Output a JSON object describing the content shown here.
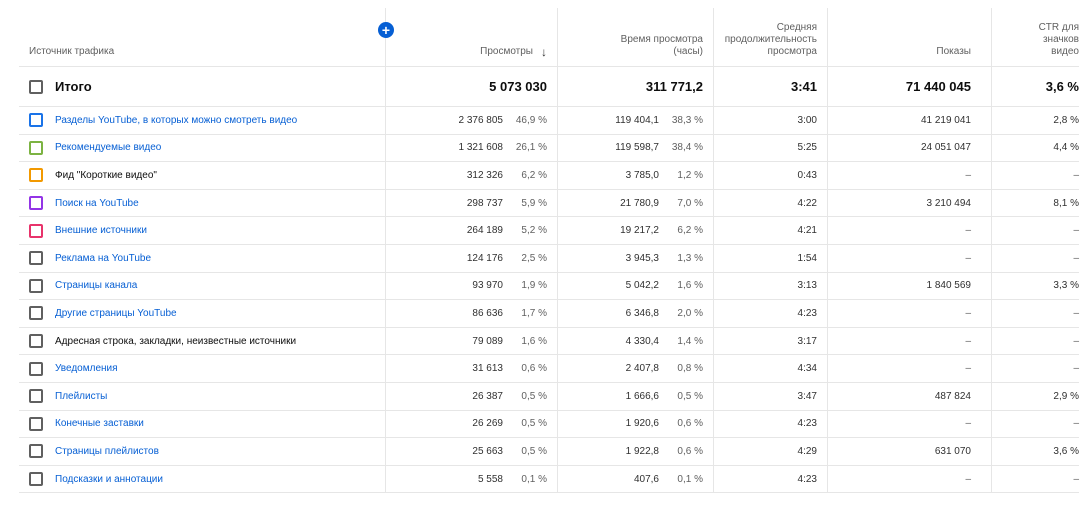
{
  "header": {
    "source": "Источник трафика",
    "views": "Просмотры",
    "sort_icon": "arrow-down-icon",
    "time_line1": "Время просмотра",
    "time_line2": "(часы)",
    "avg_line1": "Средняя",
    "avg_line2": "продолжительность",
    "avg_line3": "просмотра",
    "impressions": "Показы",
    "ctr_line1": "CTR для",
    "ctr_line2": "значков",
    "ctr_line3": "видео",
    "add_icon": "+"
  },
  "total": {
    "label": "Итого",
    "views": "5 073 030",
    "time": "311 771,2",
    "avg": "3:41",
    "impressions": "71 440 045",
    "ctr": "3,6 %"
  },
  "rows": [
    {
      "label": "Разделы YouTube, в которых можно смотреть видео",
      "link": true,
      "color": "#1a73e8",
      "views": "2 376 805",
      "views_pct": "46,9 %",
      "time": "119 404,1",
      "time_pct": "38,3 %",
      "avg": "3:00",
      "impressions": "41 219 041",
      "ctr": "2,8 %"
    },
    {
      "label": "Рекомендуемые видео",
      "link": true,
      "color": "#7cb342",
      "views": "1 321 608",
      "views_pct": "26,1 %",
      "time": "119 598,7",
      "time_pct": "38,4 %",
      "avg": "5:25",
      "impressions": "24 051 047",
      "ctr": "4,4 %"
    },
    {
      "label": "Фид \"Короткие видео\"",
      "link": false,
      "color": "#f29900",
      "views": "312 326",
      "views_pct": "6,2 %",
      "time": "3 785,0",
      "time_pct": "1,2 %",
      "avg": "0:43",
      "impressions": "–",
      "ctr": "–"
    },
    {
      "label": "Поиск на YouTube",
      "link": true,
      "color": "#9334e6",
      "views": "298 737",
      "views_pct": "5,9 %",
      "time": "21 780,9",
      "time_pct": "7,0 %",
      "avg": "4:22",
      "impressions": "3 210 494",
      "ctr": "8,1 %"
    },
    {
      "label": "Внешние источники",
      "link": true,
      "color": "#e8336b",
      "views": "264 189",
      "views_pct": "5,2 %",
      "time": "19 217,2",
      "time_pct": "6,2 %",
      "avg": "4:21",
      "impressions": "–",
      "ctr": "–"
    },
    {
      "label": "Реклама на YouTube",
      "link": true,
      "color": "#606060",
      "views": "124 176",
      "views_pct": "2,5 %",
      "time": "3 945,3",
      "time_pct": "1,3 %",
      "avg": "1:54",
      "impressions": "–",
      "ctr": "–"
    },
    {
      "label": "Страницы канала",
      "link": true,
      "color": "#606060",
      "views": "93 970",
      "views_pct": "1,9 %",
      "time": "5 042,2",
      "time_pct": "1,6 %",
      "avg": "3:13",
      "impressions": "1 840 569",
      "ctr": "3,3 %"
    },
    {
      "label": "Другие страницы YouTube",
      "link": true,
      "color": "#606060",
      "views": "86 636",
      "views_pct": "1,7 %",
      "time": "6 346,8",
      "time_pct": "2,0 %",
      "avg": "4:23",
      "impressions": "–",
      "ctr": "–"
    },
    {
      "label": "Адресная строка, закладки, неизвестные источники",
      "link": false,
      "color": "#606060",
      "views": "79 089",
      "views_pct": "1,6 %",
      "time": "4 330,4",
      "time_pct": "1,4 %",
      "avg": "3:17",
      "impressions": "–",
      "ctr": "–"
    },
    {
      "label": "Уведомления",
      "link": true,
      "color": "#606060",
      "views": "31 613",
      "views_pct": "0,6 %",
      "time": "2 407,8",
      "time_pct": "0,8 %",
      "avg": "4:34",
      "impressions": "–",
      "ctr": "–"
    },
    {
      "label": "Плейлисты",
      "link": true,
      "color": "#606060",
      "views": "26 387",
      "views_pct": "0,5 %",
      "time": "1 666,6",
      "time_pct": "0,5 %",
      "avg": "3:47",
      "impressions": "487 824",
      "ctr": "2,9 %"
    },
    {
      "label": "Конечные заставки",
      "link": true,
      "color": "#606060",
      "views": "26 269",
      "views_pct": "0,5 %",
      "time": "1 920,6",
      "time_pct": "0,6 %",
      "avg": "4:23",
      "impressions": "–",
      "ctr": "–"
    },
    {
      "label": "Страницы плейлистов",
      "link": true,
      "color": "#606060",
      "views": "25 663",
      "views_pct": "0,5 %",
      "time": "1 922,8",
      "time_pct": "0,6 %",
      "avg": "4:29",
      "impressions": "631 070",
      "ctr": "3,6 %"
    },
    {
      "label": "Подсказки и аннотации",
      "link": true,
      "color": "#606060",
      "views": "5 558",
      "views_pct": "0,1 %",
      "time": "407,6",
      "time_pct": "0,1 %",
      "avg": "4:23",
      "impressions": "–",
      "ctr": "–"
    }
  ]
}
